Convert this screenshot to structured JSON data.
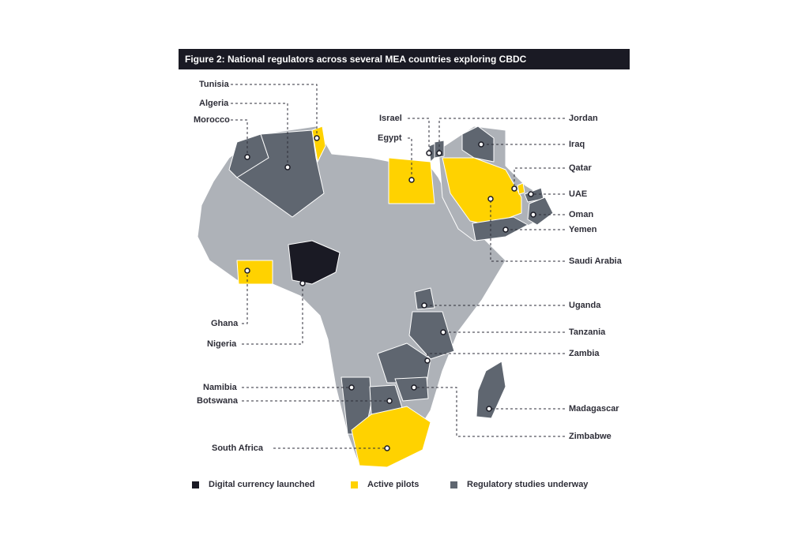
{
  "title": "Figure 2: National regulators across several MEA countries exploring CBDC",
  "colors": {
    "launched": "#1a1a24",
    "pilots": "#ffd200",
    "studies": "#5f6670",
    "other": "#aeb2b8"
  },
  "countries": {
    "tunisia": "Tunisia",
    "algeria": "Algeria",
    "morocco": "Morocco",
    "israel": "Israel",
    "egypt": "Egypt",
    "jordan": "Jordan",
    "iraq": "Iraq",
    "qatar": "Qatar",
    "uae": "UAE",
    "oman": "Oman",
    "yemen": "Yemen",
    "saudi_arabia": "Saudi Arabia",
    "uganda": "Uganda",
    "tanzania": "Tanzania",
    "zambia": "Zambia",
    "ghana": "Ghana",
    "nigeria": "Nigeria",
    "namibia": "Namibia",
    "botswana": "Botswana",
    "madagascar": "Madagascar",
    "zimbabwe": "Zimbabwe",
    "south_africa": "South Africa"
  },
  "legend": {
    "launched": "Digital currency launched",
    "pilots": "Active pilots",
    "studies": "Regulatory studies underway"
  }
}
